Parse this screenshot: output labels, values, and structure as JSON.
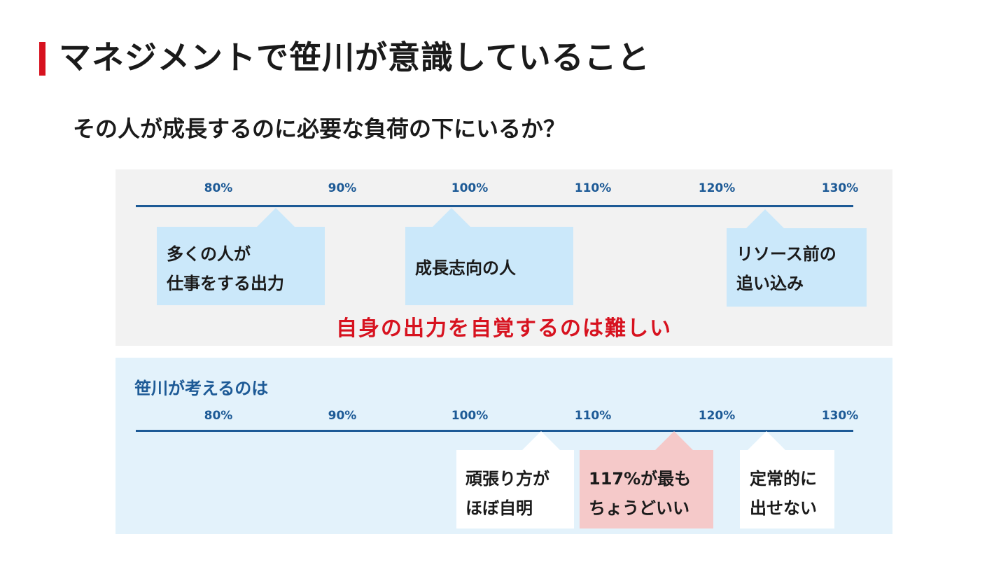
{
  "title": "マネジメントで笹川が意識していること",
  "question": "その人が成長するのに必要な負荷の下にいるか？",
  "scale_ticks": [
    "80%",
    "90%",
    "100%",
    "110%",
    "120%",
    "130%"
  ],
  "general_panel": {
    "callouts": [
      {
        "lines": [
          "多くの人が",
          "仕事をする出力"
        ],
        "pointer_percent": 85
      },
      {
        "lines": [
          "成長志向の人"
        ],
        "pointer_percent": 99
      },
      {
        "lines": [
          "リソース前の",
          "追い込み"
        ],
        "pointer_percent": 124
      }
    ],
    "warning": "自身の出力を自覚するのは難しい"
  },
  "sasagawa_panel": {
    "heading": "笹川が考えるのは",
    "callouts": [
      {
        "lines": [
          "頑張り方が",
          "ほぼ自明"
        ],
        "pointer_percent": 106
      },
      {
        "lines": [
          "117%が最も",
          "ちょうどいい"
        ],
        "pointer_percent": 117
      },
      {
        "lines": [
          "定常的に",
          "出せない"
        ],
        "pointer_percent": 124
      }
    ]
  },
  "colors": {
    "accent_red": "#d7121f",
    "axis_blue": "#1d5a96",
    "callout_blue": "#cbe8fa",
    "callout_pink": "#f5c9c9",
    "panel_gray": "#f2f2f2",
    "panel_light_blue": "#e3f2fb"
  }
}
